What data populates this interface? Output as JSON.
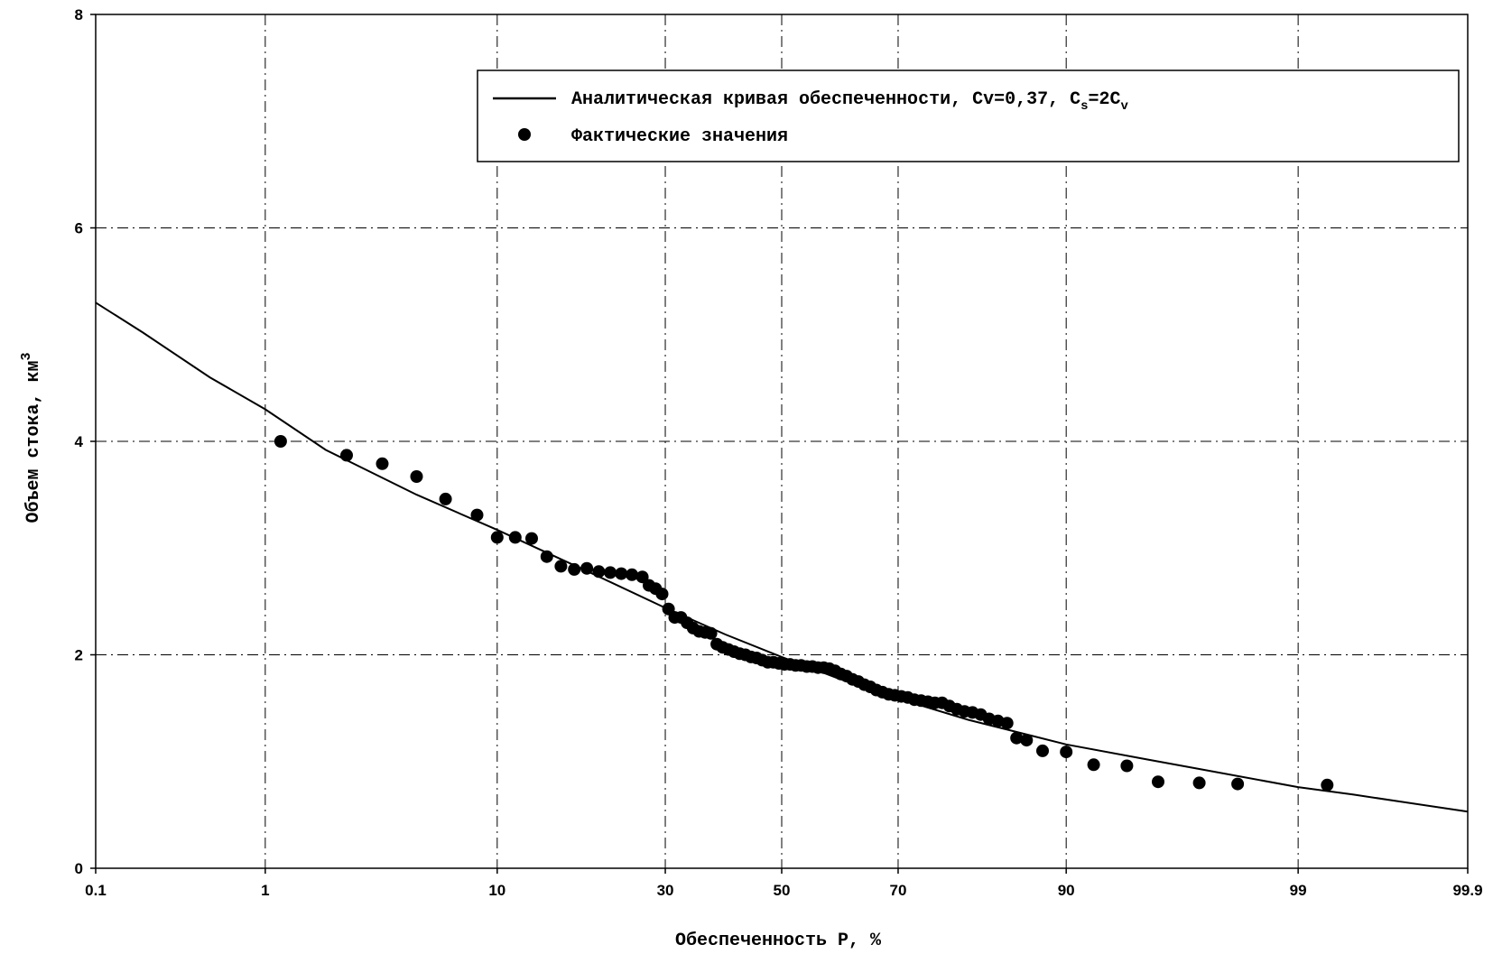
{
  "chart_data": {
    "type": "scatter",
    "title": "",
    "xlabel": "Обеспеченность Р, %",
    "ylabel": "Объем стока, км",
    "ylabel_sup": "3",
    "x_scale": "probability",
    "x_ticks": [
      "0.1",
      "1",
      "10",
      "30",
      "50",
      "70",
      "90",
      "99",
      "99.9"
    ],
    "y_ticks": [
      "0",
      "2",
      "4",
      "6",
      "8"
    ],
    "ylim": [
      0,
      8
    ],
    "xlim": [
      0.1,
      99.9
    ],
    "grid": true,
    "legend": {
      "placement": "top-right",
      "curve_label": "Аналитическая кривая обеспеченности, Cv=0,37, C",
      "curve_sub1": "s",
      "curve_mid": "=2C",
      "curve_sub2": "v",
      "points_label": "Фактические значения"
    },
    "series": [
      {
        "kind": "line",
        "x": [
          0.1,
          0.2,
          0.5,
          1,
          2,
          5,
          10,
          20,
          30,
          40,
          50,
          60,
          70,
          80,
          90,
          95,
          97,
          99,
          99.5,
          99.9
        ],
        "y": [
          5.3,
          5.02,
          4.6,
          4.3,
          3.92,
          3.5,
          3.17,
          2.75,
          2.44,
          2.19,
          1.98,
          1.78,
          1.59,
          1.39,
          1.16,
          1.02,
          0.93,
          0.76,
          0.69,
          0.53
        ]
      },
      {
        "kind": "scatter",
        "x": [
          1.2,
          2.5,
          3.6,
          5,
          6.5,
          8.5,
          10,
          11.5,
          13,
          14.5,
          16,
          17.5,
          19,
          20.5,
          22,
          23.5,
          25,
          26.5,
          27.5,
          28.5,
          29.5,
          30.5,
          31.5,
          32.5,
          33.5,
          34.5,
          35.5,
          36.5,
          37.5,
          38.5,
          39.5,
          40.5,
          41.5,
          42.5,
          43.5,
          44.5,
          45.5,
          46.5,
          47.5,
          48.5,
          49.5,
          50.5,
          51.5,
          52.5,
          53.5,
          54.5,
          55.5,
          56.5,
          57.5,
          58.5,
          59.5,
          60.5,
          61.5,
          62.5,
          63.5,
          64.5,
          65.5,
          66.5,
          67.5,
          68.5,
          69.5,
          70.5,
          71.5,
          72.5,
          73.5,
          74.5,
          75.5,
          76.5,
          77.5,
          78.5,
          79.5,
          80.5,
          81.5,
          82.5,
          83.5,
          84.5,
          85.5,
          86.5,
          88,
          90,
          92,
          94,
          95.5,
          97,
          98,
          99.3
        ],
        "y": [
          4.0,
          3.87,
          3.79,
          3.67,
          3.46,
          3.31,
          3.1,
          3.1,
          3.09,
          2.92,
          2.83,
          2.8,
          2.81,
          2.78,
          2.77,
          2.76,
          2.75,
          2.73,
          2.65,
          2.62,
          2.57,
          2.43,
          2.35,
          2.35,
          2.3,
          2.25,
          2.22,
          2.21,
          2.2,
          2.1,
          2.07,
          2.05,
          2.03,
          2.01,
          2.0,
          1.98,
          1.97,
          1.95,
          1.93,
          1.93,
          1.92,
          1.91,
          1.91,
          1.9,
          1.9,
          1.89,
          1.89,
          1.88,
          1.88,
          1.87,
          1.85,
          1.82,
          1.8,
          1.77,
          1.75,
          1.72,
          1.7,
          1.67,
          1.65,
          1.63,
          1.62,
          1.61,
          1.6,
          1.58,
          1.57,
          1.56,
          1.55,
          1.55,
          1.52,
          1.49,
          1.47,
          1.46,
          1.44,
          1.4,
          1.38,
          1.36,
          1.22,
          1.2,
          1.1,
          1.09,
          0.97,
          0.96,
          0.81,
          0.8,
          0.79,
          0.78
        ]
      }
    ]
  }
}
